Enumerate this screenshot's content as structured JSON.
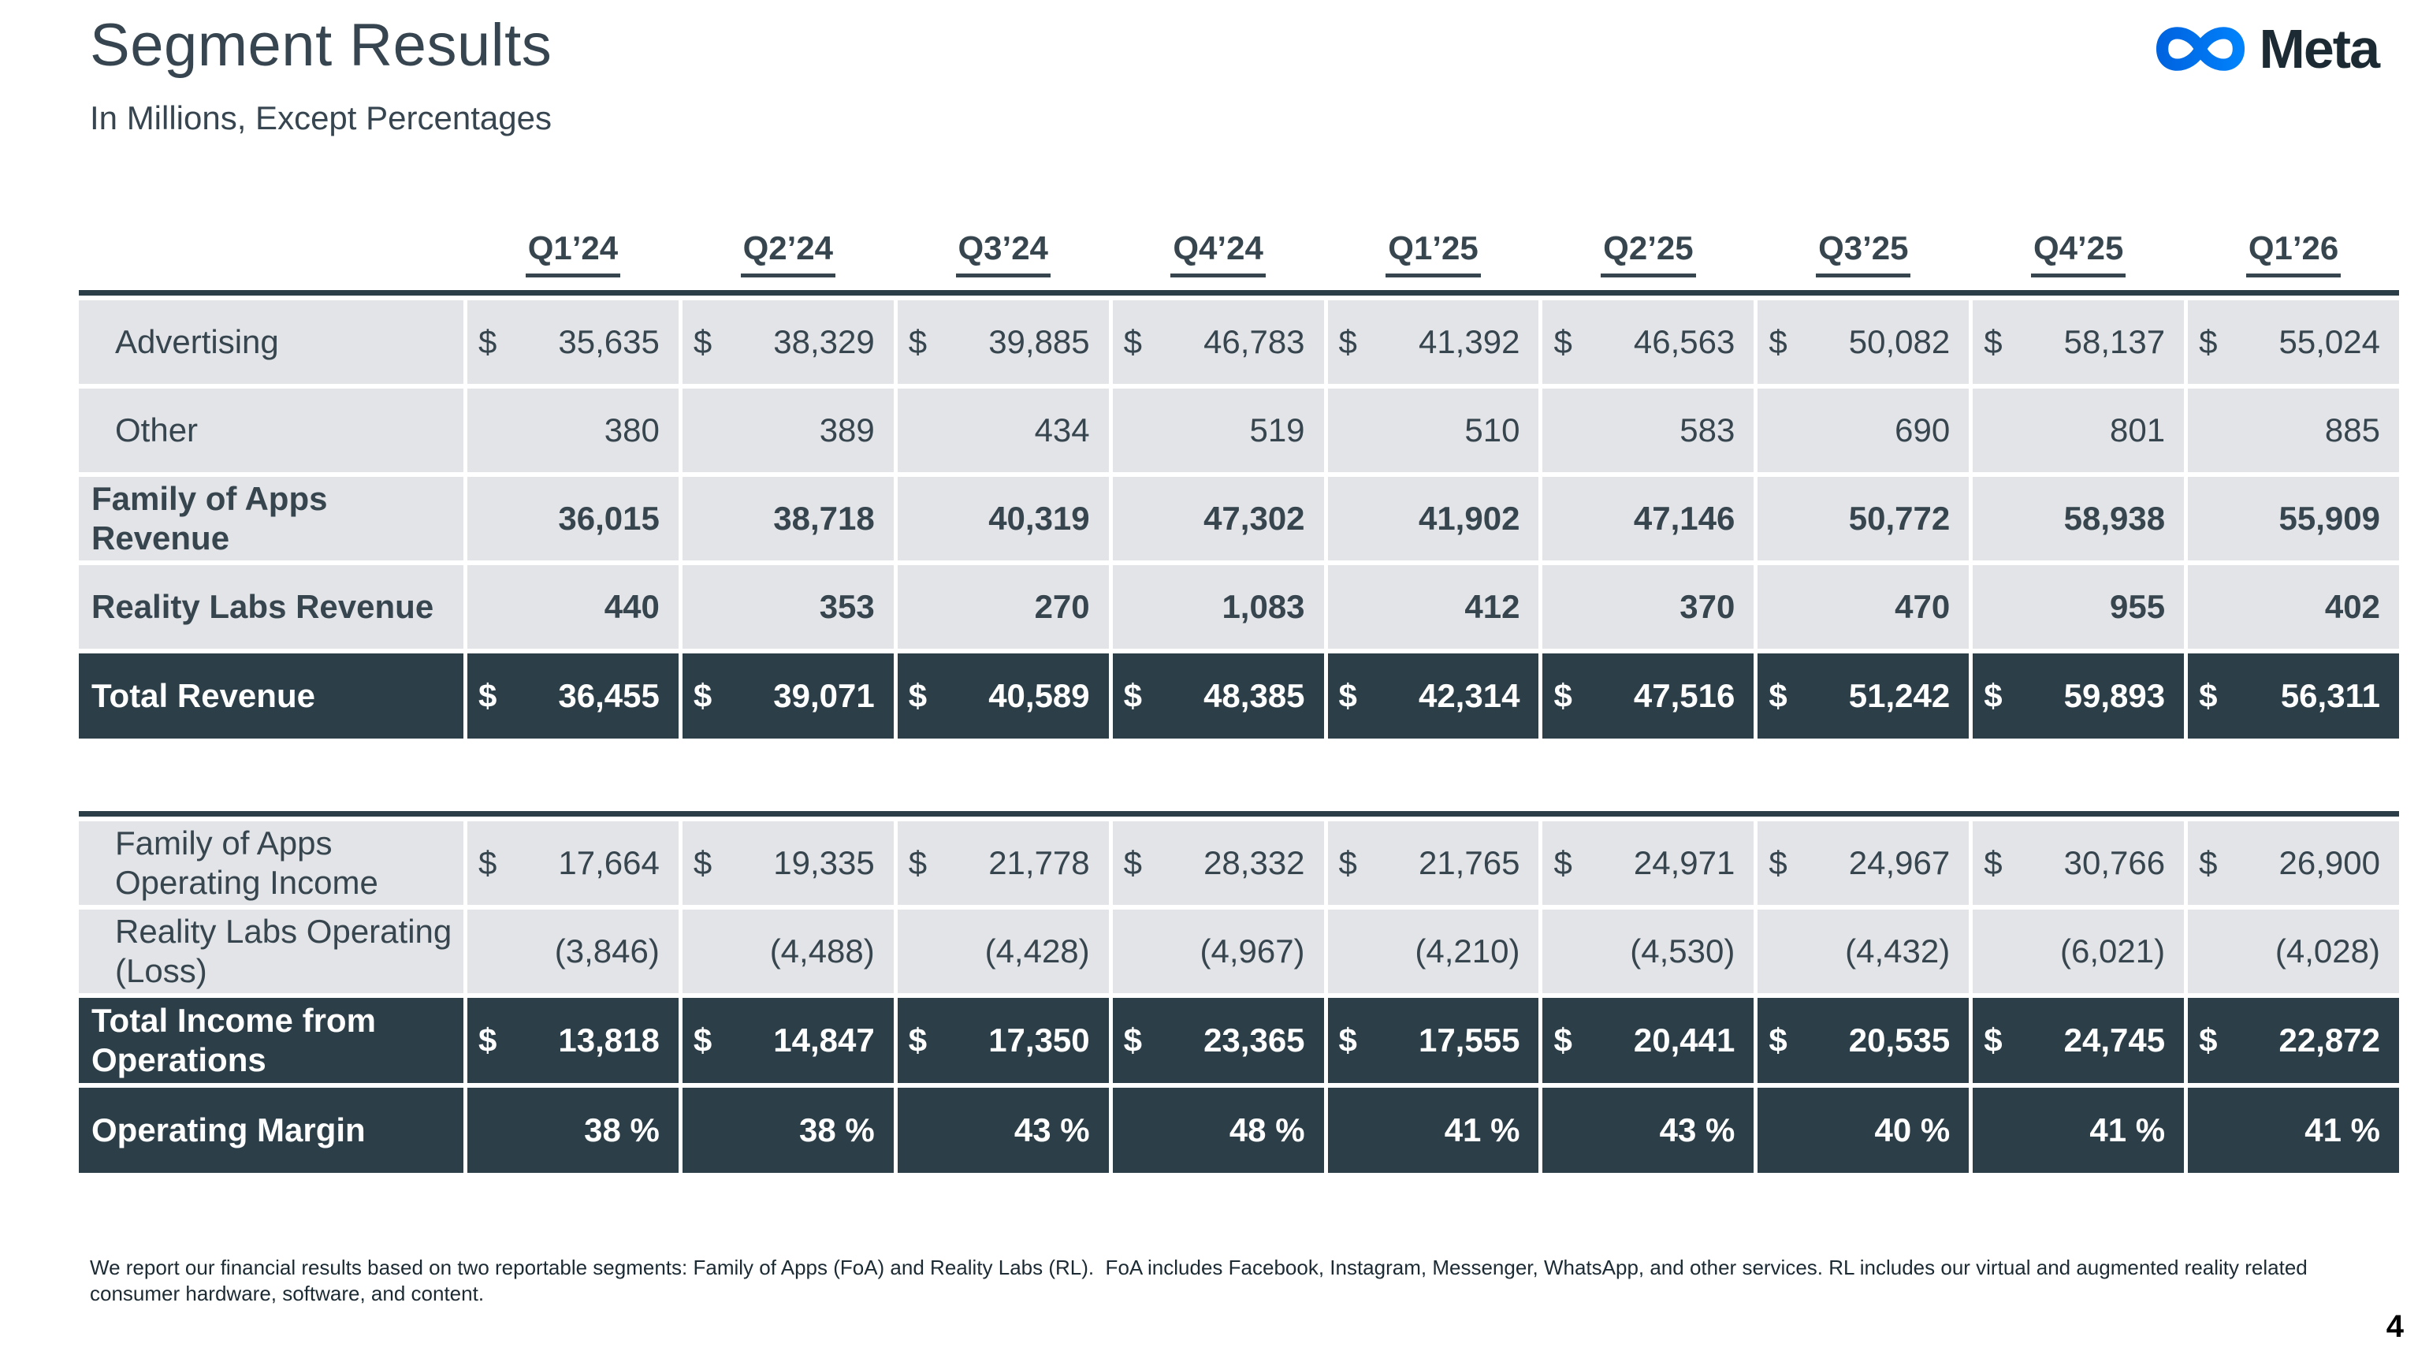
{
  "slide": {
    "title": "Segment Results",
    "subtitle": "In Millions, Except Percentages",
    "footnote": "We report our financial results based on two reportable segments: Family of Apps (FoA) and Reality Labs (RL).  FoA includes Facebook, Instagram, Messenger, WhatsApp, and other services. RL includes our virtual and augmented reality related consumer hardware, software, and content.",
    "page_number": "4"
  },
  "logo": {
    "brand": "Meta",
    "icon": "meta-infinity-logo",
    "gradient_start": "#0064E0",
    "gradient_end": "#0082FB",
    "wordmark_color": "#1C2B33"
  },
  "colors": {
    "dark_row": "#2C3E48",
    "light_row": "#E2E4E7",
    "text_dark": "#37454F",
    "white": "#FFFFFF"
  },
  "table": {
    "columns": [
      "Q1’24",
      "Q2’24",
      "Q3’24",
      "Q4’24",
      "Q1’25",
      "Q2’25",
      "Q3’25",
      "Q4’25",
      "Q1’26"
    ],
    "sections": [
      {
        "name": "revenue",
        "rows": [
          {
            "label": "Advertising",
            "style": "light",
            "bold": false,
            "indent": true,
            "dollar": true,
            "values": [
              "35,635",
              "38,329",
              "39,885",
              "46,783",
              "41,392",
              "46,563",
              "50,082",
              "58,137",
              "55,024"
            ]
          },
          {
            "label": "Other",
            "style": "light",
            "bold": false,
            "indent": true,
            "dollar": false,
            "values": [
              "380",
              "389",
              "434",
              "519",
              "510",
              "583",
              "690",
              "801",
              "885"
            ]
          },
          {
            "label": "Family of Apps Revenue",
            "style": "light",
            "bold": true,
            "indent": false,
            "dollar": false,
            "values": [
              "36,015",
              "38,718",
              "40,319",
              "47,302",
              "41,902",
              "47,146",
              "50,772",
              "58,938",
              "55,909"
            ]
          },
          {
            "label": "Reality Labs Revenue",
            "style": "light",
            "bold": true,
            "indent": false,
            "dollar": false,
            "values": [
              "440",
              "353",
              "270",
              "1,083",
              "412",
              "370",
              "470",
              "955",
              "402"
            ]
          },
          {
            "label": "Total Revenue",
            "style": "dark",
            "bold": true,
            "indent": false,
            "dollar": true,
            "values": [
              "36,455",
              "39,071",
              "40,589",
              "48,385",
              "42,314",
              "47,516",
              "51,242",
              "59,893",
              "56,311"
            ]
          }
        ]
      },
      {
        "name": "operating-income",
        "rows": [
          {
            "label": "Family of Apps Operating Income",
            "style": "light",
            "bold": false,
            "indent": true,
            "dollar": true,
            "values": [
              "17,664",
              "19,335",
              "21,778",
              "28,332",
              "21,765",
              "24,971",
              "24,967",
              "30,766",
              "26,900"
            ]
          },
          {
            "label": "Reality Labs Operating (Loss)",
            "style": "light",
            "bold": false,
            "indent": true,
            "dollar": false,
            "values": [
              "(3,846)",
              "(4,488)",
              "(4,428)",
              "(4,967)",
              "(4,210)",
              "(4,530)",
              "(4,432)",
              "(6,021)",
              "(4,028)"
            ]
          },
          {
            "label": "Total Income from Operations",
            "style": "dark",
            "bold": true,
            "indent": false,
            "dollar": true,
            "values": [
              "13,818",
              "14,847",
              "17,350",
              "23,365",
              "17,555",
              "20,441",
              "20,535",
              "24,745",
              "22,872"
            ]
          },
          {
            "label": "Operating Margin",
            "style": "dark",
            "bold": true,
            "indent": false,
            "dollar": false,
            "values": [
              "38 %",
              "38 %",
              "43 %",
              "48 %",
              "41 %",
              "43 %",
              "40 %",
              "41 %",
              "41 %"
            ]
          }
        ]
      }
    ]
  }
}
